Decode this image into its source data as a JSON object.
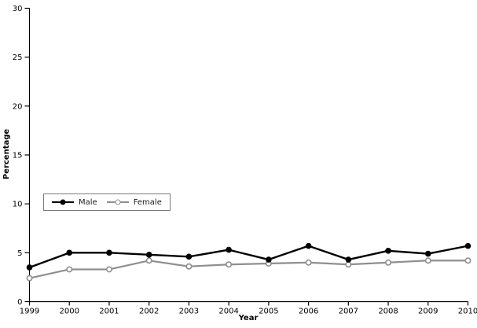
{
  "chart_data": {
    "type": "line",
    "title": "",
    "xlabel": "Year",
    "ylabel": "Percentage",
    "x": [
      1999,
      2000,
      2001,
      2002,
      2003,
      2004,
      2005,
      2006,
      2007,
      2008,
      2009,
      2010
    ],
    "series": [
      {
        "name": "Male",
        "color": "#000000",
        "marker": "filled-circle",
        "values": [
          3.5,
          5.0,
          5.0,
          4.8,
          4.6,
          5.3,
          4.3,
          5.7,
          4.3,
          5.2,
          4.9,
          5.7
        ]
      },
      {
        "name": "Female",
        "color": "#8f8f8f",
        "marker": "open-circle",
        "values": [
          2.4,
          3.3,
          3.3,
          4.2,
          3.6,
          3.8,
          3.9,
          4.0,
          3.8,
          4.0,
          4.2,
          4.2
        ]
      }
    ],
    "ylim": [
      0,
      30
    ],
    "ytick_step": 5,
    "yticks": [
      0,
      5,
      10,
      15,
      20,
      25,
      30
    ],
    "grid": false,
    "legend_position": "left-middle",
    "background": "#ffffff",
    "axis_color": "#000000"
  }
}
